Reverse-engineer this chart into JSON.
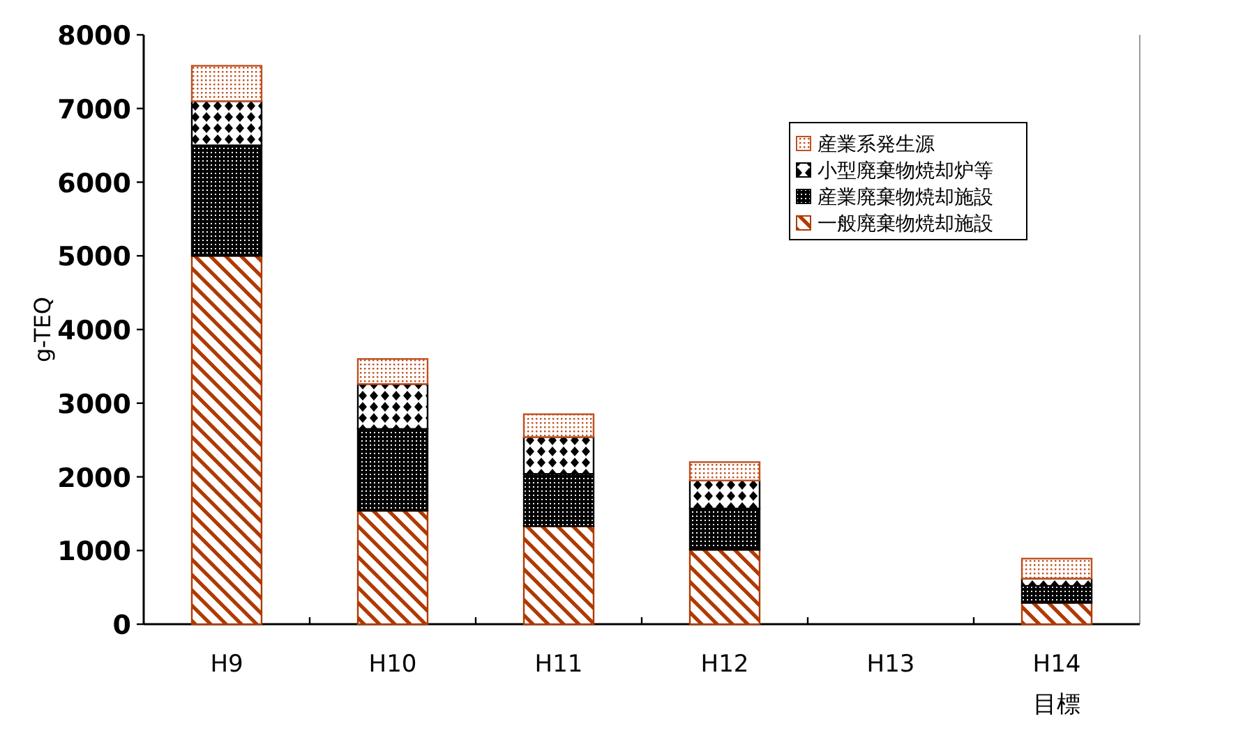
{
  "chart_data": {
    "type": "bar",
    "stacked": true,
    "ylabel": "g-TEQ",
    "categories": [
      "H9",
      "H10",
      "H11",
      "H12",
      "H13",
      "H14\n目標"
    ],
    "series": [
      {
        "name": "一般廃棄物焼却施設",
        "color": "#b03a00",
        "values": [
          5000,
          1540,
          1330,
          1010,
          null,
          290
        ]
      },
      {
        "name": "産業廃棄物焼却施設",
        "color": "#000000",
        "values": [
          1500,
          1110,
          710,
          560,
          null,
          230
        ]
      },
      {
        "name": "小型廃棄物焼却炉等",
        "color": "#000000",
        "values": [
          600,
          610,
          500,
          380,
          null,
          100
        ]
      },
      {
        "name": "産業系発生源",
        "color": "#c05020",
        "values": [
          480,
          340,
          310,
          250,
          null,
          270
        ]
      }
    ],
    "ylim": [
      0,
      8000
    ],
    "yticks": [
      0,
      1000,
      2000,
      3000,
      4000,
      5000,
      6000,
      7000,
      8000
    ],
    "legend": "top right",
    "grid": false
  }
}
